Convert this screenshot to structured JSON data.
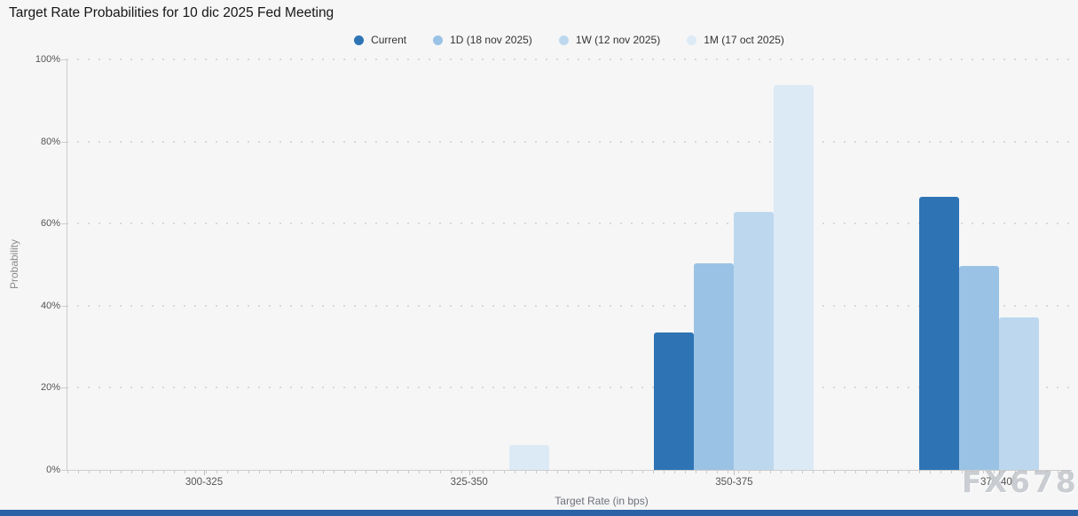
{
  "page": {
    "watermark": "FX678"
  },
  "chart_data": {
    "type": "bar",
    "title": "Target Rate Probabilities for 10 dic 2025 Fed Meeting",
    "xlabel": "Target Rate (in bps)",
    "ylabel": "Probability",
    "categories": [
      "300-325",
      "325-350",
      "350-375",
      "375-400"
    ],
    "series": [
      {
        "name": "Current",
        "color": "#2e74b5",
        "values": [
          0,
          0,
          33.5,
          66.5
        ]
      },
      {
        "name": "1D (18 nov 2025)",
        "color": "#9ac2e5",
        "values": [
          0,
          0,
          50.3,
          49.7
        ]
      },
      {
        "name": "1W (12 nov 2025)",
        "color": "#bdd8ee",
        "values": [
          0,
          0,
          62.9,
          37.1
        ]
      },
      {
        "name": "1M (17 oct 2025)",
        "color": "#dceaf6",
        "values": [
          0,
          6.0,
          93.7,
          0
        ]
      }
    ],
    "ylim": [
      0,
      100
    ],
    "yticks": [
      "0%",
      "20%",
      "40%",
      "60%",
      "80%",
      "100%"
    ],
    "legend_position": "top",
    "grid": "dotted-horizontal"
  }
}
